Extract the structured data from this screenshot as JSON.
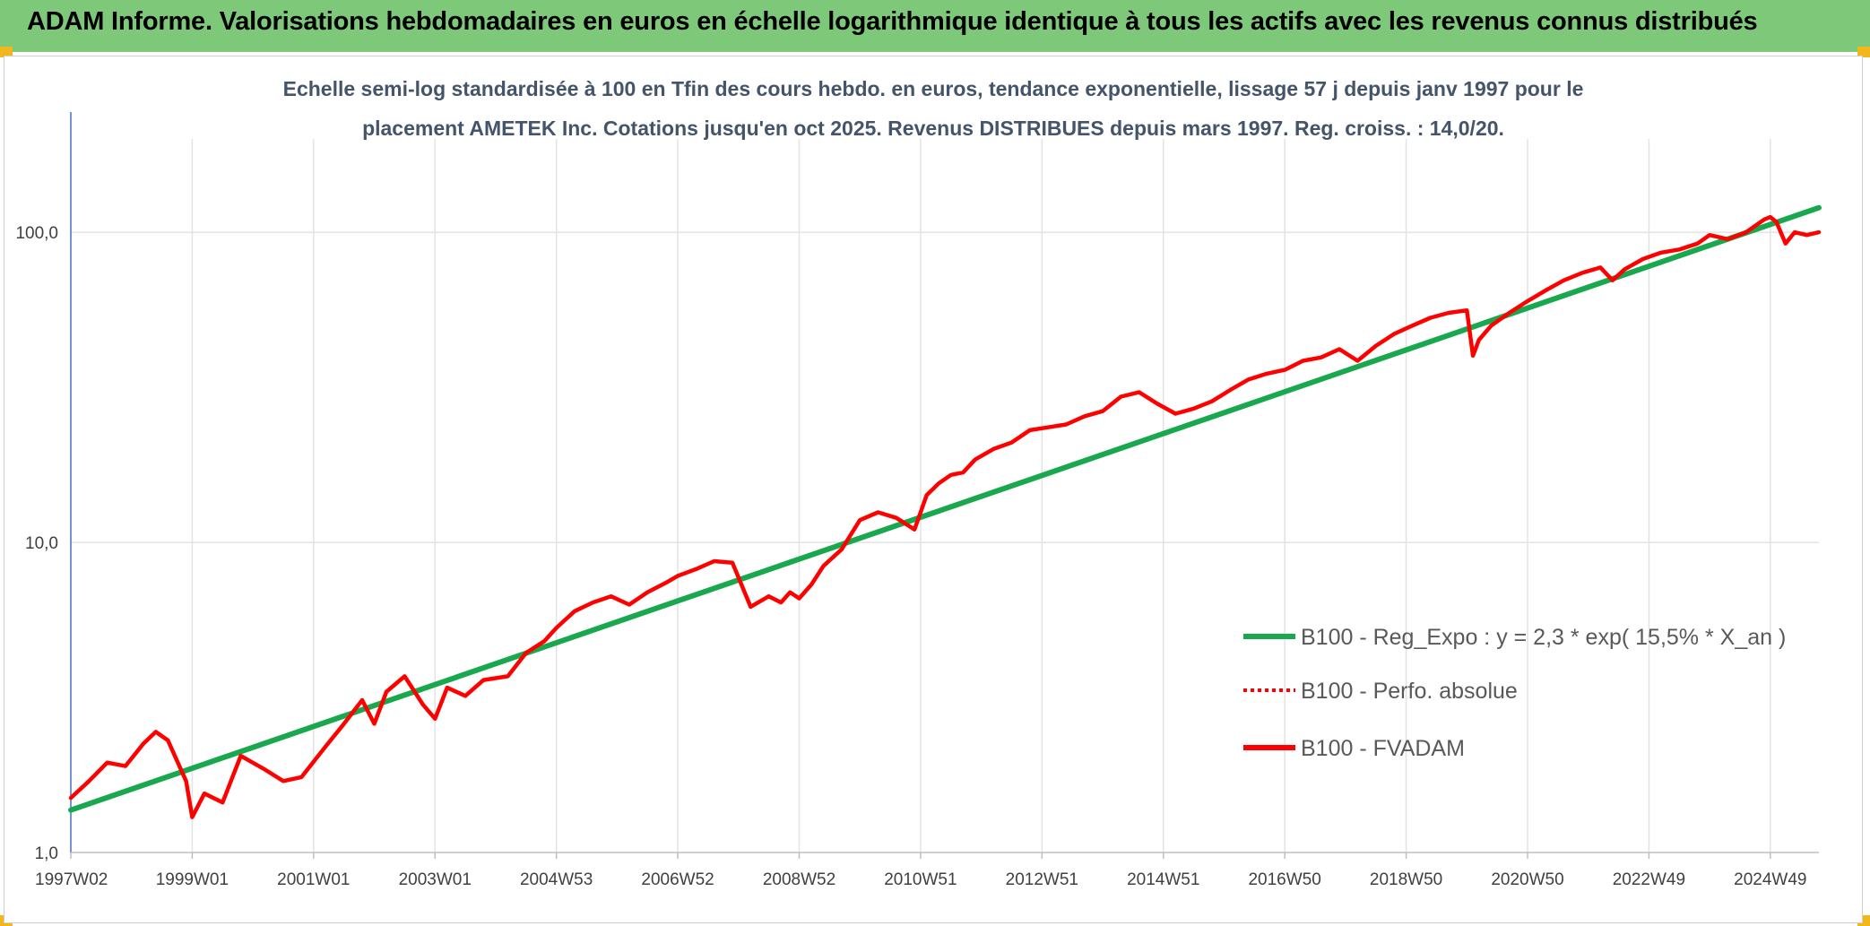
{
  "banner": {
    "title": "ADAM Informe. Valorisations hebdomadaires en euros en échelle logarithmique identique à tous les actifs avec les revenus connus distribués",
    "background": "#7ec87a",
    "corner_color": "#f2b71d"
  },
  "chart_data": {
    "type": "line",
    "subtitle_lines": [
      "Echelle semi-log standardisée à 100 en Tfin des cours hebdo. en euros, tendance exponentielle, lissage 57 j depuis janv 1997 pour le",
      "placement AMETEK Inc. Cotations jusqu'en oct 2025. Revenus DISTRIBUES depuis mars 1997. Reg. croiss. : 14,0/20."
    ],
    "y_scale": "log",
    "ylim": [
      1,
      200
    ],
    "y_ticks": [
      {
        "value": 1,
        "label": "1,0"
      },
      {
        "value": 10,
        "label": "10,0"
      },
      {
        "value": 100,
        "label": "100,0"
      }
    ],
    "xlim": [
      1997.0,
      2025.8
    ],
    "x_ticks": [
      {
        "value": 1997.0,
        "label": "1997W02"
      },
      {
        "value": 1999.0,
        "label": "1999W01"
      },
      {
        "value": 2001.0,
        "label": "2001W01"
      },
      {
        "value": 2003.0,
        "label": "2003W01"
      },
      {
        "value": 2005.0,
        "label": "2004W53"
      },
      {
        "value": 2007.0,
        "label": "2006W52"
      },
      {
        "value": 2009.0,
        "label": "2008W52"
      },
      {
        "value": 2011.0,
        "label": "2010W51"
      },
      {
        "value": 2013.0,
        "label": "2012W51"
      },
      {
        "value": 2015.0,
        "label": "2014W51"
      },
      {
        "value": 2017.0,
        "label": "2016W50"
      },
      {
        "value": 2019.0,
        "label": "2018W50"
      },
      {
        "value": 2021.0,
        "label": "2020W50"
      },
      {
        "value": 2023.0,
        "label": "2022W49"
      },
      {
        "value": 2025.0,
        "label": "2024W49"
      }
    ],
    "grid": "vertical and horizontal",
    "legend_position": "right",
    "series": [
      {
        "name": "B100 - Reg_Expo : y = 2,3 * exp( 15,5% *  X_an )",
        "color": "#1aa84f",
        "style": "solid",
        "x": [
          1997.0,
          2025.8
        ],
        "y": [
          1.37,
          120
        ]
      },
      {
        "name": "B100 - Perfo. absolue",
        "color": "#ff0000",
        "style": "dotted",
        "x": [],
        "y": []
      },
      {
        "name": "B100 - FVADAM",
        "color": "#ff0000",
        "style": "solid",
        "x": [
          1997.0,
          1997.3,
          1997.6,
          1997.9,
          1998.2,
          1998.4,
          1998.6,
          1998.9,
          1999.0,
          1999.2,
          1999.5,
          1999.8,
          2000.2,
          2000.5,
          2000.8,
          2001.2,
          2001.5,
          2001.8,
          2002.0,
          2002.2,
          2002.5,
          2002.8,
          2003.0,
          2003.2,
          2003.5,
          2003.8,
          2004.2,
          2004.5,
          2004.8,
          2005.0,
          2005.3,
          2005.6,
          2005.9,
          2006.2,
          2006.5,
          2006.8,
          2007.0,
          2007.3,
          2007.6,
          2007.9,
          2008.2,
          2008.5,
          2008.7,
          2008.85,
          2009.0,
          2009.2,
          2009.4,
          2009.7,
          2010.0,
          2010.3,
          2010.6,
          2010.9,
          2011.1,
          2011.3,
          2011.5,
          2011.7,
          2011.9,
          2012.2,
          2012.5,
          2012.8,
          2013.1,
          2013.4,
          2013.7,
          2014.0,
          2014.3,
          2014.6,
          2014.9,
          2015.2,
          2015.5,
          2015.8,
          2016.1,
          2016.4,
          2016.7,
          2017.0,
          2017.3,
          2017.6,
          2017.9,
          2018.2,
          2018.5,
          2018.8,
          2019.1,
          2019.4,
          2019.7,
          2020.0,
          2020.1,
          2020.2,
          2020.4,
          2020.7,
          2021.0,
          2021.3,
          2021.6,
          2021.9,
          2022.2,
          2022.4,
          2022.6,
          2022.9,
          2023.2,
          2023.5,
          2023.8,
          2024.0,
          2024.3,
          2024.6,
          2024.9,
          2025.0,
          2025.1,
          2025.25,
          2025.4,
          2025.6,
          2025.8
        ],
        "y": [
          1.5,
          1.7,
          1.95,
          1.9,
          2.25,
          2.45,
          2.3,
          1.7,
          1.3,
          1.55,
          1.45,
          2.05,
          1.85,
          1.7,
          1.75,
          2.2,
          2.6,
          3.1,
          2.6,
          3.3,
          3.7,
          3.0,
          2.7,
          3.4,
          3.2,
          3.6,
          3.7,
          4.4,
          4.8,
          5.3,
          6.0,
          6.4,
          6.7,
          6.3,
          6.9,
          7.4,
          7.8,
          8.2,
          8.7,
          8.6,
          6.2,
          6.7,
          6.4,
          6.9,
          6.6,
          7.3,
          8.4,
          9.5,
          11.8,
          12.5,
          12.0,
          11.0,
          14.2,
          15.5,
          16.5,
          16.8,
          18.5,
          20.0,
          21.0,
          23.0,
          23.5,
          24.0,
          25.5,
          26.5,
          29.5,
          30.5,
          28.0,
          26.0,
          27.0,
          28.5,
          31.0,
          33.5,
          35.0,
          36.0,
          38.5,
          39.5,
          42.0,
          38.5,
          43.0,
          47.0,
          50.0,
          53.0,
          55.0,
          56.0,
          40.0,
          45.0,
          50.0,
          55.0,
          60.0,
          65.0,
          70.0,
          74.0,
          77.0,
          70.0,
          76.0,
          82.0,
          86.0,
          88.0,
          92.0,
          98.0,
          95.0,
          100.0,
          110.0,
          112.0,
          108.0,
          92.0,
          100.0,
          98.0,
          100.0
        ]
      }
    ]
  }
}
